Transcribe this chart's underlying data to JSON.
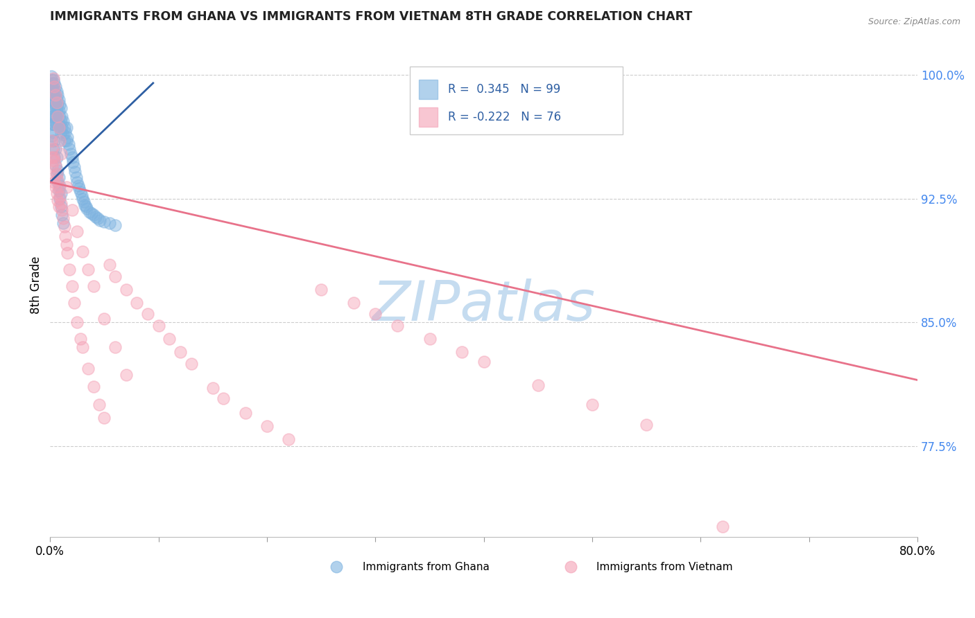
{
  "title": "IMMIGRANTS FROM GHANA VS IMMIGRANTS FROM VIETNAM 8TH GRADE CORRELATION CHART",
  "source": "Source: ZipAtlas.com",
  "ylabel": "8th Grade",
  "xlim": [
    0.0,
    0.8
  ],
  "ylim": [
    0.72,
    1.025
  ],
  "ghana_R": 0.345,
  "ghana_N": 99,
  "vietnam_R": -0.222,
  "vietnam_N": 76,
  "ghana_color": "#7EB3E0",
  "vietnam_color": "#F4A0B5",
  "ghana_line_color": "#2E5FA3",
  "vietnam_line_color": "#E8728A",
  "watermark": "ZIPatlas",
  "watermark_color": "#C5DCF0",
  "right_yticks": [
    1.0,
    0.925,
    0.85,
    0.775
  ],
  "right_ylabels": [
    "100.0%",
    "92.5%",
    "85.0%",
    "77.5%"
  ],
  "ghana_trend_x": [
    0.0,
    0.095
  ],
  "ghana_trend_y": [
    0.935,
    0.995
  ],
  "vietnam_trend_x": [
    0.0,
    0.8
  ],
  "vietnam_trend_y": [
    0.935,
    0.815
  ],
  "ghana_x": [
    0.001,
    0.001,
    0.001,
    0.002,
    0.002,
    0.002,
    0.002,
    0.003,
    0.003,
    0.003,
    0.003,
    0.003,
    0.003,
    0.004,
    0.004,
    0.004,
    0.004,
    0.004,
    0.005,
    0.005,
    0.005,
    0.005,
    0.006,
    0.006,
    0.006,
    0.006,
    0.007,
    0.007,
    0.007,
    0.008,
    0.008,
    0.008,
    0.009,
    0.009,
    0.009,
    0.01,
    0.01,
    0.01,
    0.011,
    0.011,
    0.012,
    0.012,
    0.013,
    0.013,
    0.014,
    0.015,
    0.015,
    0.016,
    0.017,
    0.018,
    0.019,
    0.02,
    0.021,
    0.022,
    0.023,
    0.024,
    0.025,
    0.026,
    0.027,
    0.028,
    0.029,
    0.03,
    0.031,
    0.032,
    0.033,
    0.034,
    0.036,
    0.038,
    0.04,
    0.042,
    0.044,
    0.046,
    0.05,
    0.055,
    0.06,
    0.002,
    0.003,
    0.004,
    0.005,
    0.006,
    0.007,
    0.008,
    0.009,
    0.01,
    0.011,
    0.012,
    0.003,
    0.004,
    0.005,
    0.006,
    0.002,
    0.002,
    0.003,
    0.007,
    0.008,
    0.009,
    0.01,
    0.001,
    0.001,
    0.001
  ],
  "ghana_y": [
    0.99,
    0.985,
    0.975,
    0.995,
    0.99,
    0.985,
    0.98,
    0.997,
    0.993,
    0.988,
    0.982,
    0.975,
    0.97,
    0.995,
    0.99,
    0.985,
    0.978,
    0.972,
    0.993,
    0.988,
    0.982,
    0.975,
    0.99,
    0.985,
    0.978,
    0.97,
    0.988,
    0.982,
    0.975,
    0.985,
    0.978,
    0.97,
    0.982,
    0.975,
    0.968,
    0.98,
    0.972,
    0.965,
    0.975,
    0.968,
    0.972,
    0.964,
    0.968,
    0.96,
    0.965,
    0.968,
    0.96,
    0.962,
    0.958,
    0.955,
    0.952,
    0.95,
    0.947,
    0.944,
    0.941,
    0.938,
    0.935,
    0.933,
    0.931,
    0.929,
    0.927,
    0.925,
    0.923,
    0.921,
    0.92,
    0.919,
    0.917,
    0.916,
    0.915,
    0.914,
    0.913,
    0.912,
    0.911,
    0.91,
    0.909,
    0.96,
    0.955,
    0.95,
    0.945,
    0.94,
    0.935,
    0.93,
    0.925,
    0.92,
    0.915,
    0.91,
    0.965,
    0.96,
    0.955,
    0.95,
    0.97,
    0.963,
    0.97,
    0.942,
    0.938,
    0.933,
    0.928,
    0.999,
    0.997,
    0.993
  ],
  "vietnam_x": [
    0.001,
    0.001,
    0.002,
    0.002,
    0.003,
    0.003,
    0.004,
    0.004,
    0.005,
    0.005,
    0.006,
    0.006,
    0.007,
    0.007,
    0.008,
    0.008,
    0.009,
    0.01,
    0.011,
    0.012,
    0.013,
    0.014,
    0.015,
    0.016,
    0.018,
    0.02,
    0.022,
    0.025,
    0.028,
    0.03,
    0.035,
    0.04,
    0.045,
    0.05,
    0.055,
    0.06,
    0.07,
    0.08,
    0.09,
    0.1,
    0.11,
    0.12,
    0.13,
    0.15,
    0.16,
    0.18,
    0.2,
    0.22,
    0.25,
    0.28,
    0.3,
    0.32,
    0.35,
    0.38,
    0.4,
    0.45,
    0.5,
    0.55,
    0.62,
    0.003,
    0.004,
    0.005,
    0.006,
    0.007,
    0.008,
    0.009,
    0.01,
    0.015,
    0.02,
    0.025,
    0.03,
    0.035,
    0.04,
    0.05,
    0.06,
    0.07
  ],
  "vietnam_y": [
    0.96,
    0.95,
    0.955,
    0.945,
    0.95,
    0.938,
    0.948,
    0.935,
    0.945,
    0.932,
    0.94,
    0.928,
    0.936,
    0.924,
    0.932,
    0.92,
    0.926,
    0.922,
    0.918,
    0.913,
    0.908,
    0.902,
    0.897,
    0.892,
    0.882,
    0.872,
    0.862,
    0.85,
    0.84,
    0.835,
    0.822,
    0.811,
    0.8,
    0.792,
    0.885,
    0.878,
    0.87,
    0.862,
    0.855,
    0.848,
    0.84,
    0.832,
    0.825,
    0.81,
    0.804,
    0.795,
    0.787,
    0.779,
    0.87,
    0.862,
    0.855,
    0.848,
    0.84,
    0.832,
    0.826,
    0.812,
    0.8,
    0.788,
    0.726,
    0.998,
    0.993,
    0.988,
    0.983,
    0.975,
    0.968,
    0.96,
    0.952,
    0.932,
    0.918,
    0.905,
    0.893,
    0.882,
    0.872,
    0.852,
    0.835,
    0.818
  ]
}
